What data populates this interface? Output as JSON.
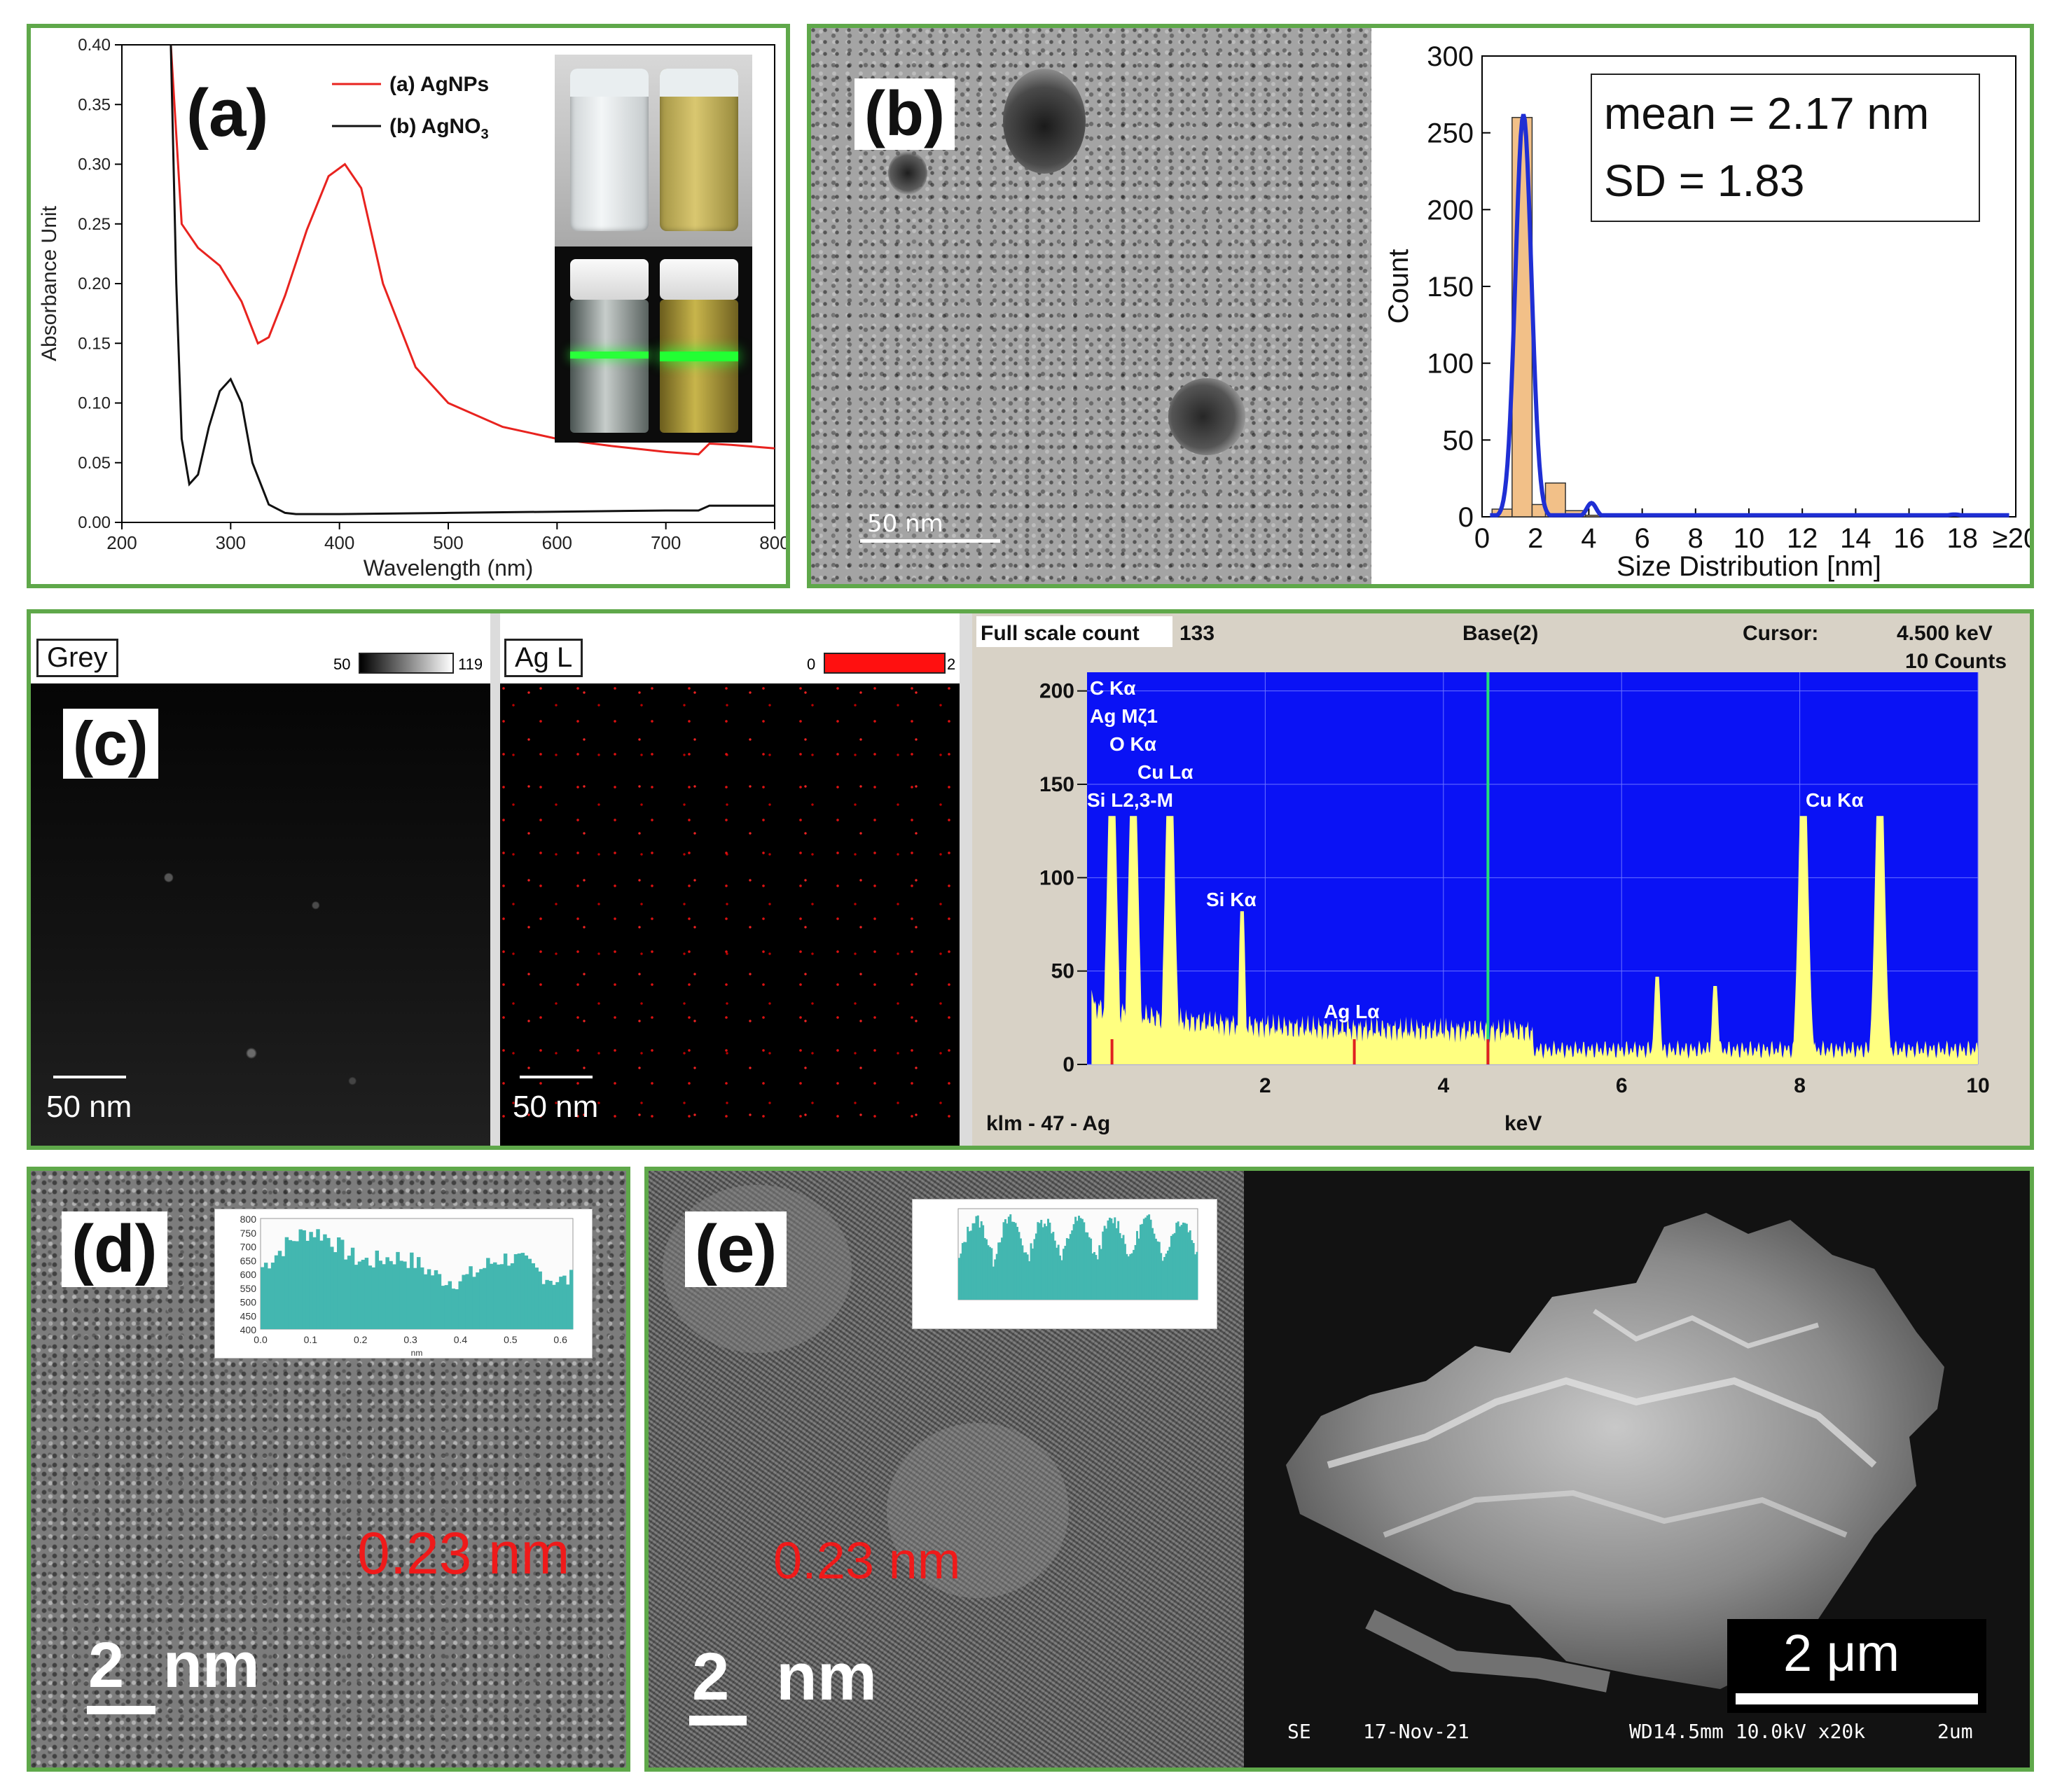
{
  "panel_a": {
    "label": "(a)",
    "chart_data": {
      "type": "line",
      "xlabel": "Wavelength (nm)",
      "ylabel": "Absorbance Unit",
      "xlim": [
        200,
        800
      ],
      "ylim": [
        0,
        0.4
      ],
      "xticks": [
        "200",
        "300",
        "400",
        "500",
        "600",
        "700",
        "800"
      ],
      "yticks": [
        "0.00",
        "0.05",
        "0.10",
        "0.15",
        "0.20",
        "0.25",
        "0.30",
        "0.35",
        "0.40"
      ],
      "legend_position": "top",
      "series": [
        {
          "name": "(a) AgNPs",
          "color": "#e8231f",
          "x": [
            245,
            255,
            270,
            290,
            310,
            325,
            335,
            350,
            370,
            390,
            405,
            420,
            440,
            470,
            500,
            550,
            600,
            650,
            700,
            730,
            740,
            760,
            800
          ],
          "y": [
            0.4,
            0.25,
            0.23,
            0.215,
            0.185,
            0.15,
            0.155,
            0.19,
            0.245,
            0.29,
            0.3,
            0.28,
            0.2,
            0.13,
            0.1,
            0.08,
            0.07,
            0.064,
            0.059,
            0.057,
            0.066,
            0.065,
            0.062
          ]
        },
        {
          "name": "(b) AgNO",
          "subscript": "3",
          "color": "#111111",
          "x": [
            245,
            250,
            255,
            262,
            270,
            280,
            290,
            300,
            310,
            320,
            335,
            350,
            360,
            400,
            500,
            600,
            700,
            730,
            740,
            800
          ],
          "y": [
            0.4,
            0.2,
            0.07,
            0.032,
            0.04,
            0.08,
            0.11,
            0.12,
            0.1,
            0.05,
            0.015,
            0.008,
            0.007,
            0.007,
            0.008,
            0.009,
            0.01,
            0.01,
            0.014,
            0.014
          ]
        }
      ]
    }
  },
  "panel_b": {
    "label": "(b)",
    "scale_bar": "50 nm",
    "chart_data": {
      "type": "bar",
      "xlabel": "Size Distribution [nm]",
      "ylabel": "Count",
      "xlim": [
        0,
        20
      ],
      "ylim": [
        0,
        300
      ],
      "xticks": [
        "0",
        "2",
        "4",
        "6",
        "8",
        "10",
        "12",
        "14",
        "16",
        "18",
        "≥20"
      ],
      "yticks": [
        "0",
        "50",
        "100",
        "150",
        "200",
        "250",
        "300"
      ],
      "bins": [
        0.75,
        1.5,
        2.25,
        2.75,
        3.5,
        4.25
      ],
      "values": [
        5,
        260,
        8,
        22,
        4,
        1
      ],
      "fit_color": "#1f2fd4",
      "stats": {
        "mean": "mean = 2.17 nm",
        "sd": "SD = 1.83"
      }
    }
  },
  "panel_c": {
    "label": "(c)",
    "grey_map": {
      "title": "Grey",
      "scale_min": "50",
      "scale_max": "119",
      "scale_bar": "50 nm"
    },
    "agl_map": {
      "title": "Ag L",
      "scale_min": "0",
      "scale_max": "2",
      "scale_bar": "50 nm"
    },
    "eds": {
      "header_left": "Full scale count",
      "header_count": "133",
      "header_mid": "Base(2)",
      "cursor_label": "Cursor:",
      "cursor_value": "4.500 keV",
      "cursor_counts": "10 Counts",
      "footer_left": "klm - 47 - Ag",
      "footer_mid": "keV",
      "chart_data": {
        "type": "area",
        "xlim": [
          0,
          10
        ],
        "ylim": [
          0,
          210
        ],
        "xticks": [
          "2",
          "4",
          "6",
          "8",
          "10"
        ],
        "yticks": [
          "0",
          "50",
          "100",
          "150",
          "200"
        ],
        "background_color": "#0a12f5",
        "fill_color": "#ffff80",
        "cursor_x": 4.5,
        "peaks": [
          {
            "x": 0.28,
            "y": 133
          },
          {
            "x": 0.52,
            "y": 133
          },
          {
            "x": 0.93,
            "y": 133
          },
          {
            "x": 1.74,
            "y": 82
          },
          {
            "x": 6.4,
            "y": 47
          },
          {
            "x": 7.05,
            "y": 42
          },
          {
            "x": 8.04,
            "y": 133
          },
          {
            "x": 8.9,
            "y": 133
          }
        ],
        "annotations": [
          "C Kα",
          "Ag Mζ1",
          "O Kα",
          "Cu Lα",
          "Si L2,3-M",
          "Si Kα",
          "Ag Lα",
          "Cu Kα"
        ]
      }
    }
  },
  "panel_d": {
    "label": "(d)",
    "lattice": "0.23 nm",
    "scale_bar": "2 nm",
    "profile": {
      "yticks": [
        "800",
        "750",
        "700",
        "650",
        "600",
        "550",
        "500",
        "450",
        "400"
      ],
      "xticks": [
        "0.0",
        "0.1",
        "0.2",
        "0.3",
        "0.4",
        "0.5",
        "0.6"
      ],
      "xlabel": "nm"
    }
  },
  "panel_e": {
    "label": "(e)",
    "lattice": "0.23 nm",
    "scale_bar": "2 nm",
    "sem": {
      "scale_bar": "2 μm",
      "footer_se": "SE",
      "footer_date": "17-Nov-21",
      "footer_params": "WD14.5mm 10.0kV x20k",
      "footer_scale": "2um"
    }
  }
}
